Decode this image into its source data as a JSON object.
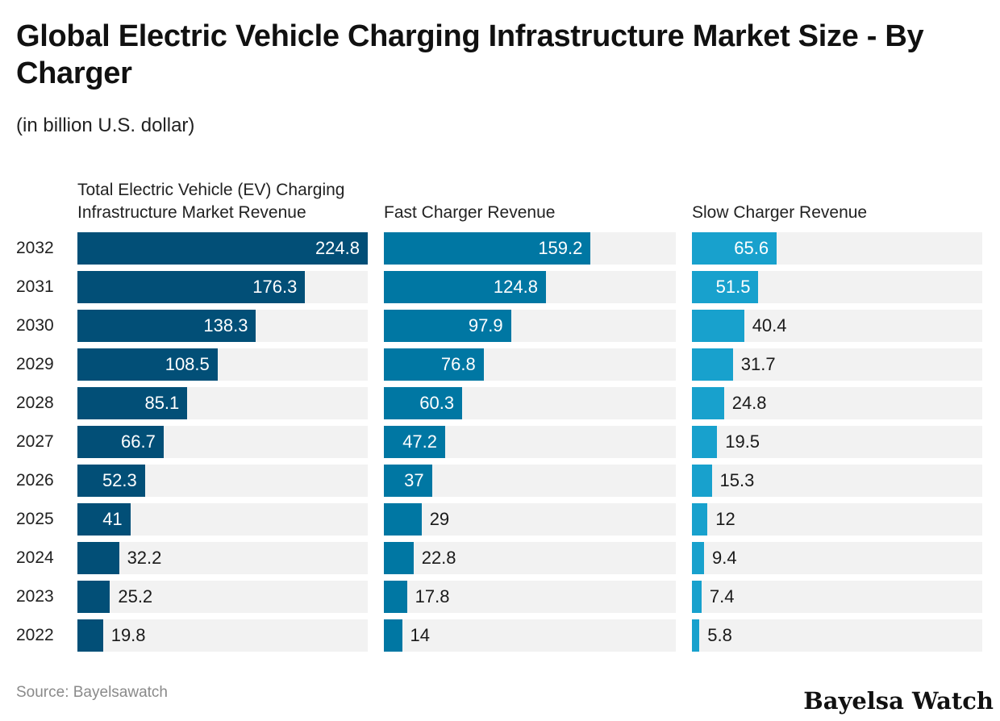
{
  "title": "Global Electric Vehicle Charging Infrastructure Market Size - By Charger",
  "subtitle": "(in billion U.S. dollar)",
  "source": "Source: Bayelsawatch",
  "logo": "Bayelsa Watch",
  "chart_data": {
    "type": "bar",
    "orientation": "horizontal",
    "title": "Global Electric Vehicle Charging Infrastructure Market Size - By Charger",
    "subtitle": "(in billion U.S. dollar)",
    "categories": [
      "2032",
      "2031",
      "2030",
      "2029",
      "2028",
      "2027",
      "2026",
      "2025",
      "2024",
      "2023",
      "2022"
    ],
    "xlim": [
      0,
      224.8
    ],
    "series": [
      {
        "name": "Total Electric Vehicle (EV) Charging Infrastructure Market Revenue",
        "color": "#024f77",
        "values": [
          224.8,
          176.3,
          138.3,
          108.5,
          85.1,
          66.7,
          52.3,
          41,
          32.2,
          25.2,
          19.8
        ]
      },
      {
        "name": "Fast Charger Revenue",
        "color": "#0077a3",
        "values": [
          159.2,
          124.8,
          97.9,
          76.8,
          60.3,
          47.2,
          37,
          29,
          22.8,
          17.8,
          14
        ]
      },
      {
        "name": "Slow Charger Revenue",
        "color": "#18a1cd",
        "values": [
          65.6,
          51.5,
          40.4,
          31.7,
          24.8,
          19.5,
          15.3,
          12,
          9.4,
          7.4,
          5.8
        ]
      }
    ],
    "track_color": "#f2f2f2",
    "grid": false,
    "legend": "none"
  }
}
